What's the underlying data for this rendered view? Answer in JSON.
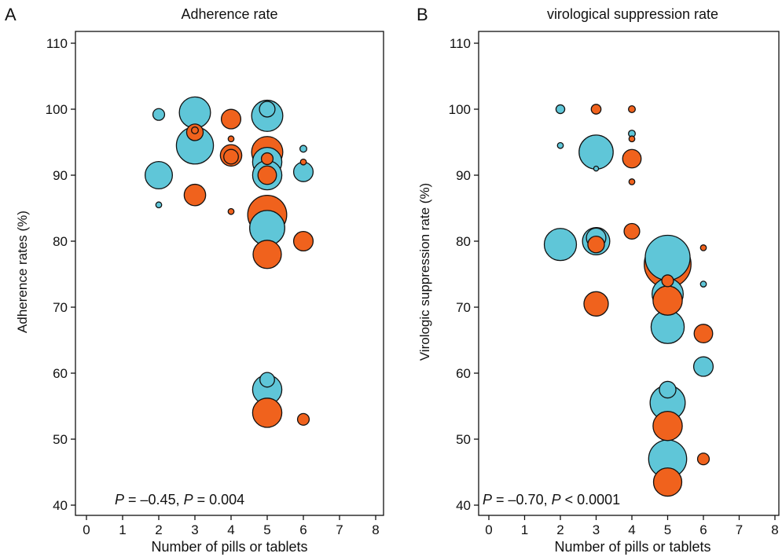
{
  "chart_data": [
    {
      "panel_label": "A",
      "type": "scatter",
      "title": "Adherence rate",
      "xlabel": "Number of pills or tablets",
      "ylabel": "Adherence rates (%)",
      "xlim": [
        0,
        8
      ],
      "ylim": [
        40,
        110
      ],
      "xticks": [
        "0",
        "1",
        "2",
        "3",
        "4",
        "5",
        "6",
        "7",
        "8"
      ],
      "yticks": [
        "40",
        "50",
        "60",
        "70",
        "80",
        "90",
        "100",
        "110"
      ],
      "grid": false,
      "annotation": {
        "s1": "P",
        "t1": " = –0.45, ",
        "s2": "P",
        "t2": " = 0.004"
      },
      "points": [
        {
          "x": 3,
          "y": 99.5,
          "size": 3.2,
          "group": "blue"
        },
        {
          "x": 5,
          "y": 99,
          "size": 3.2,
          "group": "blue"
        },
        {
          "x": 2,
          "y": 99.2,
          "size": 1.2,
          "group": "blue"
        },
        {
          "x": 3,
          "y": 94.5,
          "size": 3.8,
          "group": "blue"
        },
        {
          "x": 2,
          "y": 90,
          "size": 2.8,
          "group": "blue"
        },
        {
          "x": 2,
          "y": 85.5,
          "size": 0.6,
          "group": "blue"
        },
        {
          "x": 5,
          "y": 92,
          "size": 3,
          "group": "blue"
        },
        {
          "x": 5,
          "y": 90,
          "size": 3,
          "group": "blue"
        },
        {
          "x": 6,
          "y": 90.5,
          "size": 2,
          "group": "blue"
        },
        {
          "x": 6,
          "y": 94,
          "size": 0.7,
          "group": "blue"
        },
        {
          "x": 5,
          "y": 82,
          "size": 3.6,
          "group": "blue"
        },
        {
          "x": 5,
          "y": 57.5,
          "size": 3,
          "group": "blue"
        },
        {
          "x": 5,
          "y": 59,
          "size": 1.5,
          "group": "blue"
        },
        {
          "x": 5,
          "y": 100,
          "size": 1.6,
          "group": "blue"
        },
        {
          "x": 4,
          "y": 98.5,
          "size": 2,
          "group": "orange"
        },
        {
          "x": 3,
          "y": 96.5,
          "size": 1.7,
          "group": "orange"
        },
        {
          "x": 3,
          "y": 96.8,
          "size": 0.7,
          "group": "orange"
        },
        {
          "x": 4,
          "y": 95.5,
          "size": 0.6,
          "group": "orange"
        },
        {
          "x": 4,
          "y": 93,
          "size": 2.2,
          "group": "orange"
        },
        {
          "x": 4,
          "y": 92.8,
          "size": 1.5,
          "group": "orange"
        },
        {
          "x": 5,
          "y": 93.5,
          "size": 3.2,
          "group": "orange"
        },
        {
          "x": 5,
          "y": 92.5,
          "size": 1.2,
          "group": "orange"
        },
        {
          "x": 5,
          "y": 90,
          "size": 1.9,
          "group": "orange"
        },
        {
          "x": 6,
          "y": 92,
          "size": 0.6,
          "group": "orange"
        },
        {
          "x": 3,
          "y": 87,
          "size": 2.2,
          "group": "orange"
        },
        {
          "x": 4,
          "y": 84.5,
          "size": 0.6,
          "group": "orange"
        },
        {
          "x": 5,
          "y": 84,
          "size": 4,
          "group": "orange"
        },
        {
          "x": 6,
          "y": 80,
          "size": 2,
          "group": "orange"
        },
        {
          "x": 5,
          "y": 78,
          "size": 2.9,
          "group": "orange"
        },
        {
          "x": 5,
          "y": 54,
          "size": 3,
          "group": "orange"
        },
        {
          "x": 6,
          "y": 53,
          "size": 1.2,
          "group": "orange"
        }
      ]
    },
    {
      "panel_label": "B",
      "type": "scatter",
      "title": "virological suppression rate",
      "xlabel": "Number of pills or tablets",
      "ylabel": "Virologic suppression rate (%)",
      "xlim": [
        0,
        8
      ],
      "ylim": [
        40,
        110
      ],
      "xticks": [
        "0",
        "1",
        "2",
        "3",
        "4",
        "5",
        "6",
        "7",
        "8"
      ],
      "yticks": [
        "40",
        "50",
        "60",
        "70",
        "80",
        "90",
        "100",
        "110"
      ],
      "grid": false,
      "annotation": {
        "s1": "P",
        "t1": " = –0.70, ",
        "s2": "P",
        "t2": " < 0.0001"
      },
      "points": [
        {
          "x": 2,
          "y": 100,
          "size": 0.9,
          "group": "blue"
        },
        {
          "x": 2,
          "y": 94.5,
          "size": 0.6,
          "group": "blue"
        },
        {
          "x": 3,
          "y": 93.5,
          "size": 3.5,
          "group": "blue"
        },
        {
          "x": 3,
          "y": 91,
          "size": 0.5,
          "group": "blue"
        },
        {
          "x": 4,
          "y": 96.3,
          "size": 0.7,
          "group": "blue"
        },
        {
          "x": 2,
          "y": 79.5,
          "size": 3.3,
          "group": "blue"
        },
        {
          "x": 3,
          "y": 80,
          "size": 2.8,
          "group": "blue"
        },
        {
          "x": 3,
          "y": 80.5,
          "size": 2,
          "group": "blue"
        },
        {
          "x": 5,
          "y": 77.5,
          "size": 4.6,
          "group": "blue"
        },
        {
          "x": 5,
          "y": 72,
          "size": 3.2,
          "group": "blue"
        },
        {
          "x": 5,
          "y": 67,
          "size": 3.4,
          "group": "blue"
        },
        {
          "x": 6,
          "y": 73.5,
          "size": 0.6,
          "group": "blue"
        },
        {
          "x": 6,
          "y": 61,
          "size": 2,
          "group": "blue"
        },
        {
          "x": 5,
          "y": 57.5,
          "size": 1.7,
          "group": "blue"
        },
        {
          "x": 5,
          "y": 55.5,
          "size": 3.6,
          "group": "blue"
        },
        {
          "x": 5,
          "y": 47,
          "size": 3.9,
          "group": "blue"
        },
        {
          "x": 3,
          "y": 100,
          "size": 1,
          "group": "orange"
        },
        {
          "x": 4,
          "y": 100,
          "size": 0.7,
          "group": "orange"
        },
        {
          "x": 4,
          "y": 95.5,
          "size": 0.6,
          "group": "orange"
        },
        {
          "x": 4,
          "y": 92.5,
          "size": 1.9,
          "group": "orange"
        },
        {
          "x": 4,
          "y": 89,
          "size": 0.6,
          "group": "orange"
        },
        {
          "x": 4,
          "y": 81.5,
          "size": 1.6,
          "group": "orange"
        },
        {
          "x": 3,
          "y": 79.5,
          "size": 1.7,
          "group": "orange"
        },
        {
          "x": 3,
          "y": 70.5,
          "size": 2.5,
          "group": "orange"
        },
        {
          "x": 5,
          "y": 76.5,
          "size": 4.8,
          "group": "orange"
        },
        {
          "x": 5,
          "y": 74,
          "size": 1.2,
          "group": "orange"
        },
        {
          "x": 5,
          "y": 71,
          "size": 3,
          "group": "orange"
        },
        {
          "x": 6,
          "y": 79,
          "size": 0.6,
          "group": "orange"
        },
        {
          "x": 6,
          "y": 66,
          "size": 1.9,
          "group": "orange"
        },
        {
          "x": 6,
          "y": 47,
          "size": 1.2,
          "group": "orange"
        },
        {
          "x": 5,
          "y": 52,
          "size": 3,
          "group": "orange"
        },
        {
          "x": 5,
          "y": 43.5,
          "size": 2.9,
          "group": "orange"
        }
      ]
    }
  ],
  "colors": {
    "blue": "#5fc6d8",
    "orange": "#f0621d",
    "stroke": "#111111"
  }
}
